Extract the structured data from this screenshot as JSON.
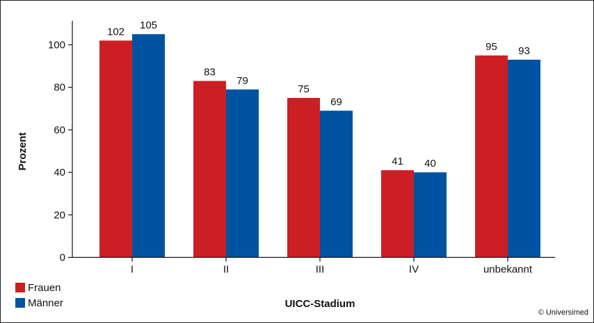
{
  "chart_data": {
    "type": "bar",
    "categories": [
      "I",
      "II",
      "III",
      "IV",
      "unbekannt"
    ],
    "series": [
      {
        "name": "Frauen",
        "values": [
          102,
          83,
          75,
          41,
          95
        ],
        "color": "#cc1f24"
      },
      {
        "name": "Männer",
        "values": [
          105,
          79,
          69,
          40,
          93
        ],
        "color": "#0053a1"
      }
    ],
    "xlabel": "UICC-Stadium",
    "ylabel": "Prozent",
    "ylim": [
      0,
      110
    ],
    "yticks": [
      0,
      20,
      40,
      60,
      80,
      100
    ],
    "grid": false,
    "legend_position": "bottom-left"
  },
  "copyright": "© Universimed"
}
